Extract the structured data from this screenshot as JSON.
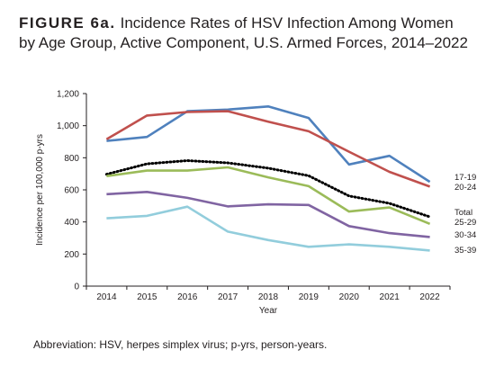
{
  "figure": {
    "label": "FIGURE 6a.",
    "title_line1": "Incidence Rates of HSV Infection Among Women",
    "title_line2": "by Age Group, Active Component, U.S. Armed Forces, 2014–2022",
    "footnote": "Abbreviation: HSV, herpes simplex virus; p-yrs, person-years."
  },
  "chart_data": {
    "type": "line",
    "title": "Incidence Rates of HSV Infection Among Women by Age Group, Active Component, U.S. Armed Forces, 2014–2022",
    "xlabel": "Year",
    "ylabel": "Incidence per 100,000 p-yrs",
    "x": [
      "2014",
      "2015",
      "2016",
      "2017",
      "2018",
      "2019",
      "2020",
      "2021",
      "2022"
    ],
    "ylim": [
      0,
      1200
    ],
    "yticks": [
      "0",
      "200",
      "400",
      "600",
      "800",
      "1,000",
      "1,200"
    ],
    "grid": false,
    "legend": "direct labels at right end of lines",
    "series": [
      {
        "name": "17-19",
        "color": "#4f81bd",
        "style": "solid",
        "values": [
          905,
          930,
          1090,
          1100,
          1120,
          1048,
          758,
          812,
          650
        ]
      },
      {
        "name": "20-24",
        "color": "#c0504d",
        "style": "solid",
        "values": [
          915,
          1063,
          1085,
          1090,
          1025,
          965,
          838,
          712,
          620
        ]
      },
      {
        "name": "Total",
        "color": "#000000",
        "style": "dotted",
        "values": [
          697,
          762,
          782,
          768,
          735,
          688,
          562,
          516,
          432
        ]
      },
      {
        "name": "25-29",
        "color": "#9bbb59",
        "style": "solid",
        "values": [
          686,
          720,
          720,
          740,
          678,
          623,
          465,
          490,
          388
        ]
      },
      {
        "name": "30-34",
        "color": "#8064a2",
        "style": "solid",
        "values": [
          573,
          587,
          550,
          497,
          510,
          506,
          374,
          330,
          306
        ]
      },
      {
        "name": "35-39",
        "color": "#92cddc",
        "style": "solid",
        "values": [
          423,
          438,
          495,
          340,
          287,
          245,
          260,
          245,
          222
        ]
      }
    ]
  }
}
